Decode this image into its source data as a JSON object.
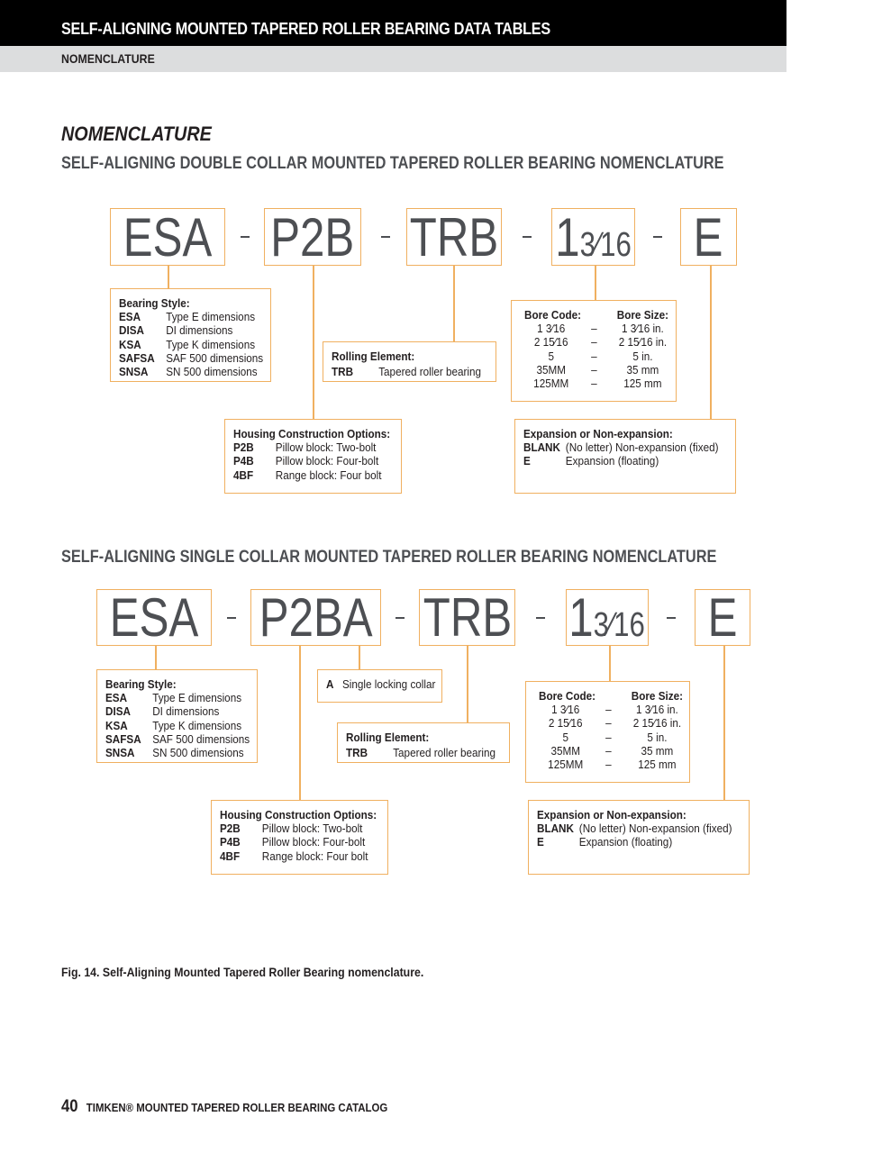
{
  "header": {
    "title": "SELF-ALIGNING MOUNTED TAPERED ROLLER BEARING DATA TABLES",
    "section": "NOMENCLATURE"
  },
  "page_title": "NOMENCLATURE",
  "colors": {
    "accent_border": "#f0b060",
    "code_text": "#4d4f53",
    "header_bg": "#000000",
    "subheader_bg": "#dcddde"
  },
  "diagrams": [
    {
      "subtitle": "SELF-ALIGNING DOUBLE COLLAR MOUNTED TAPERED ROLLER BEARING NOMENCLATURE",
      "codes": [
        {
          "whole": "ESA",
          "frac": ""
        },
        {
          "whole": "P2B",
          "frac": ""
        },
        {
          "whole": "TRB",
          "frac": ""
        },
        {
          "whole": "1",
          "frac": "3⁄16"
        },
        {
          "whole": "E",
          "frac": ""
        }
      ],
      "separator": "-",
      "bearing_style": {
        "heading": "Bearing Style:",
        "rows": [
          [
            "ESA",
            "Type E dimensions"
          ],
          [
            "DISA",
            "DI dimensions"
          ],
          [
            "KSA",
            "Type K dimensions"
          ],
          [
            "SAFSA",
            "SAF 500 dimensions"
          ],
          [
            "SNSA",
            "SN 500 dimensions"
          ]
        ]
      },
      "rolling_element": {
        "heading": "Rolling Element:",
        "rows": [
          [
            "TRB",
            "Tapered roller bearing"
          ]
        ]
      },
      "bore": {
        "code_heading": "Bore Code:",
        "size_heading": "Bore Size:",
        "rows": [
          [
            "1 3⁄16",
            "–",
            "1 3⁄16 in."
          ],
          [
            "2 15⁄16",
            "–",
            "2 15⁄16 in."
          ],
          [
            "5",
            "–",
            "5 in."
          ],
          [
            "35MM",
            "–",
            "35 mm"
          ],
          [
            "125MM",
            "–",
            "125 mm"
          ]
        ]
      },
      "housing": {
        "heading": "Housing Construction Options:",
        "rows": [
          [
            "P2B",
            "Pillow block: Two-bolt"
          ],
          [
            "P4B",
            "Pillow block: Four-bolt"
          ],
          [
            "4BF",
            "Range block: Four bolt"
          ]
        ]
      },
      "expansion": {
        "heading": "Expansion or Non-expansion:",
        "rows": [
          [
            "BLANK",
            "(No letter) Non-expansion (fixed)"
          ],
          [
            "E",
            "Expansion (floating)"
          ]
        ]
      }
    },
    {
      "subtitle": "SELF-ALIGNING SINGLE COLLAR MOUNTED TAPERED ROLLER BEARING NOMENCLATURE",
      "codes": [
        {
          "whole": "ESA",
          "frac": ""
        },
        {
          "whole": "P2BA",
          "frac": ""
        },
        {
          "whole": "TRB",
          "frac": ""
        },
        {
          "whole": "1",
          "frac": "3⁄16"
        },
        {
          "whole": "E",
          "frac": ""
        }
      ],
      "separator": "-",
      "bearing_style": {
        "heading": "Bearing Style:",
        "rows": [
          [
            "ESA",
            "Type E dimensions"
          ],
          [
            "DISA",
            "DI dimensions"
          ],
          [
            "KSA",
            "Type K dimensions"
          ],
          [
            "SAFSA",
            "SAF 500 dimensions"
          ],
          [
            "SNSA",
            "SN 500 dimensions"
          ]
        ]
      },
      "collar": {
        "rows": [
          [
            "A",
            "Single locking collar"
          ]
        ]
      },
      "rolling_element": {
        "heading": "Rolling Element:",
        "rows": [
          [
            "TRB",
            "Tapered roller bearing"
          ]
        ]
      },
      "bore": {
        "code_heading": "Bore Code:",
        "size_heading": "Bore Size:",
        "rows": [
          [
            "1 3⁄16",
            "–",
            "1 3⁄16 in."
          ],
          [
            "2 15⁄16",
            "–",
            "2 15⁄16 in."
          ],
          [
            "5",
            "–",
            "5 in."
          ],
          [
            "35MM",
            "–",
            "35 mm"
          ],
          [
            "125MM",
            "–",
            "125 mm"
          ]
        ]
      },
      "housing": {
        "heading": "Housing Construction Options:",
        "rows": [
          [
            "P2B",
            "Pillow block: Two-bolt"
          ],
          [
            "P4B",
            "Pillow block: Four-bolt"
          ],
          [
            "4BF",
            "Range block: Four bolt"
          ]
        ]
      },
      "expansion": {
        "heading": "Expansion or Non-expansion:",
        "rows": [
          [
            "BLANK",
            "(No letter) Non-expansion (fixed)"
          ],
          [
            "E",
            "Expansion (floating)"
          ]
        ]
      }
    }
  ],
  "caption": "Fig. 14. Self-Aligning Mounted Tapered Roller Bearing nomenclature.",
  "footer": {
    "page_number": "40",
    "text": "TIMKEN® MOUNTED TAPERED ROLLER BEARING CATALOG"
  }
}
